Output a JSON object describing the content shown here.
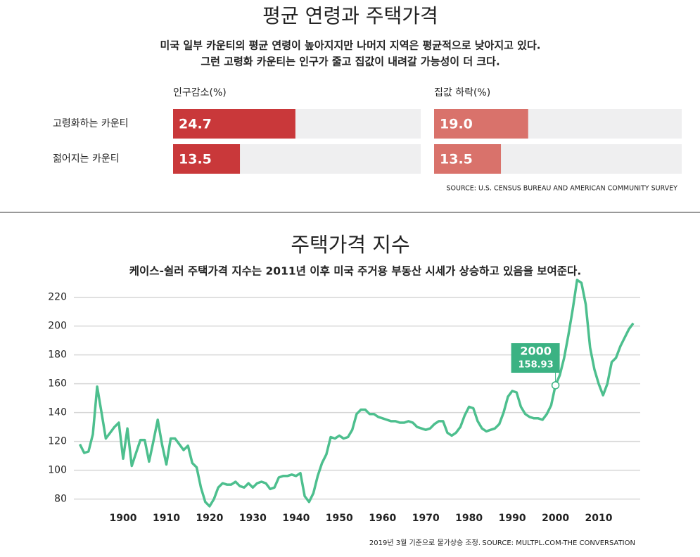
{
  "chart_data": [
    {
      "type": "hbar-panels",
      "title": "평균 연령과 주택가격",
      "subtitle": [
        "미국 일부 카운티의 평균 연령이 높아지지만 나머지 지역은 평균적으로 낮아지고 있다.",
        "그런 고령화 카운티는 인구가 줄고 집값이 내려갈 가능성이 더 크다."
      ],
      "categories": [
        "고령화하는 카운티",
        "젊어지는 카운티"
      ],
      "series": [
        {
          "name": "인구감소(%)",
          "color": "#c9383a",
          "values": [
            24.7,
            13.5
          ],
          "value_labels": [
            "24.7",
            "13.5"
          ]
        },
        {
          "name": "집값 하락(%)",
          "color": "#d9726b",
          "values": [
            19.0,
            13.5
          ],
          "value_labels": [
            "19.0",
            "13.5"
          ]
        }
      ],
      "xlim": [
        0,
        50
      ],
      "source": "SOURCE: U.S. CENSUS BUREAU AND AMERICAN COMMUNITY SURVEY"
    },
    {
      "type": "line",
      "title": "주택가격 지수",
      "subtitle": "케이스-쉴러 주택가격 지수는 2011년 이후 미국 주거용 부동산 시세가 상승하고 있음을 보여준다.",
      "x": [
        1890,
        1891,
        1892,
        1893,
        1894,
        1895,
        1896,
        1897,
        1898,
        1899,
        1900,
        1901,
        1902,
        1903,
        1904,
        1905,
        1906,
        1907,
        1908,
        1909,
        1910,
        1911,
        1912,
        1913,
        1914,
        1915,
        1916,
        1917,
        1918,
        1919,
        1920,
        1921,
        1922,
        1923,
        1924,
        1925,
        1926,
        1927,
        1928,
        1929,
        1930,
        1931,
        1932,
        1933,
        1934,
        1935,
        1936,
        1937,
        1938,
        1939,
        1940,
        1941,
        1942,
        1943,
        1944,
        1945,
        1946,
        1947,
        1948,
        1949,
        1950,
        1951,
        1952,
        1953,
        1954,
        1955,
        1956,
        1957,
        1958,
        1959,
        1960,
        1961,
        1962,
        1963,
        1964,
        1965,
        1966,
        1967,
        1968,
        1969,
        1970,
        1971,
        1972,
        1973,
        1974,
        1975,
        1976,
        1977,
        1978,
        1979,
        1980,
        1981,
        1982,
        1983,
        1984,
        1985,
        1986,
        1987,
        1988,
        1989,
        1990,
        1991,
        1992,
        1993,
        1994,
        1995,
        1996,
        1997,
        1998,
        1999,
        2000,
        2001,
        2002,
        2003,
        2004,
        2005,
        2006,
        2007,
        2008,
        2009,
        2010,
        2011,
        2012,
        2013,
        2014,
        2015,
        2016,
        2017,
        2018
      ],
      "series": [
        {
          "color": "#4dbf8e",
          "values": [
            118,
            112,
            113,
            125,
            158,
            140,
            122,
            126,
            130,
            133,
            108,
            129,
            103,
            112,
            121,
            121,
            106,
            120,
            135,
            118,
            104,
            122,
            122,
            118,
            114,
            117,
            105,
            102,
            88,
            78,
            75,
            80,
            88,
            91,
            90,
            90,
            92,
            89,
            88,
            91,
            88,
            91,
            92,
            91,
            87,
            88,
            95,
            96,
            96,
            97,
            96,
            98,
            82,
            78,
            84,
            96,
            105,
            111,
            123,
            122,
            124,
            122,
            123,
            128,
            139,
            142,
            142,
            139,
            139,
            137,
            136,
            135,
            134,
            134,
            133,
            133,
            134,
            133,
            130,
            129,
            128,
            129,
            132,
            134,
            134,
            126,
            124,
            126,
            130,
            138,
            144,
            143,
            134,
            129,
            127,
            128,
            129,
            132,
            140,
            151,
            155,
            154,
            144,
            139,
            137,
            136,
            136,
            135,
            139,
            145,
            158.93,
            166,
            178,
            194,
            212,
            232,
            230,
            215,
            185,
            170,
            160,
            152,
            160,
            175,
            178,
            186,
            192,
            198,
            202
          ]
        }
      ],
      "xlim": [
        1889,
        2020
      ],
      "xticks": [
        1900,
        1910,
        1920,
        1930,
        1940,
        1950,
        1960,
        1970,
        1980,
        1990,
        2000,
        2010
      ],
      "ylim": [
        72,
        234
      ],
      "yticks": [
        80,
        100,
        120,
        140,
        160,
        180,
        200,
        220
      ],
      "grid": true,
      "annotation": {
        "x": 2000,
        "y": 158.93
      },
      "note": "2019년 3월 기준으로 물가상승 조정.",
      "source": "SOURCE: MULTPL.COM-THE CONVERSATION"
    }
  ]
}
